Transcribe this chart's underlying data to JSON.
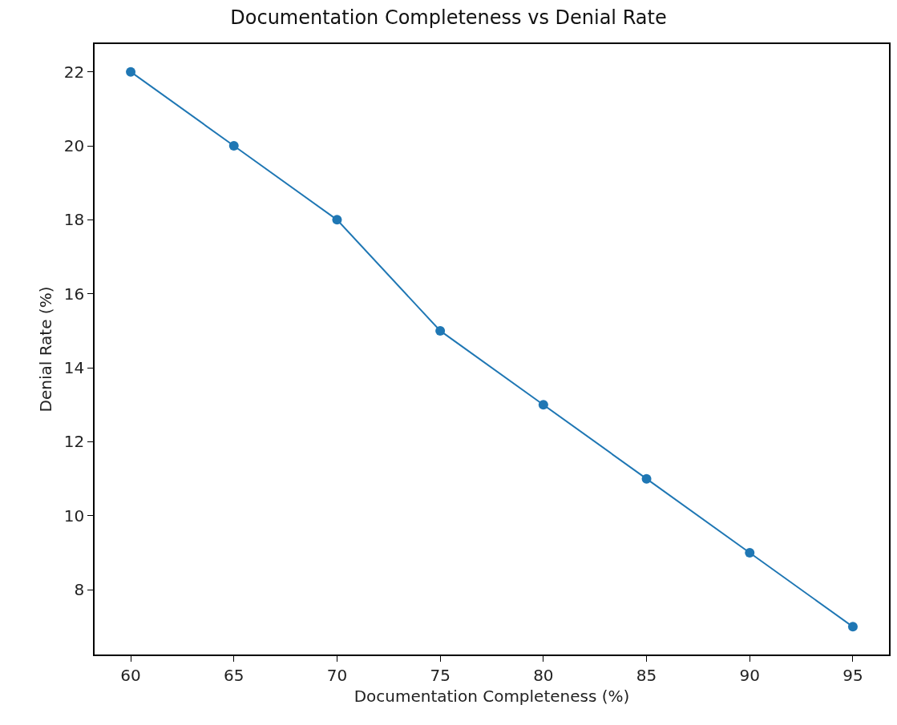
{
  "chart_data": {
    "type": "line",
    "title": "Documentation Completeness vs Denial Rate",
    "xlabel": "Documentation Completeness (%)",
    "ylabel": "Denial Rate (%)",
    "x": [
      60,
      65,
      70,
      75,
      80,
      85,
      90,
      95
    ],
    "series": [
      {
        "color": "#1f77b4",
        "values": [
          22,
          20,
          18,
          15,
          13,
          11,
          9,
          7
        ]
      }
    ],
    "xlim": [
      58.25,
      96.75
    ],
    "xticks": [
      60,
      65,
      70,
      75,
      80,
      85,
      90,
      95
    ],
    "ylim": [
      6.25,
      22.75
    ],
    "yticks": [
      8,
      10,
      12,
      14,
      16,
      18,
      20,
      22
    ],
    "grid": false,
    "marker": "circle",
    "line_style": "solid"
  }
}
